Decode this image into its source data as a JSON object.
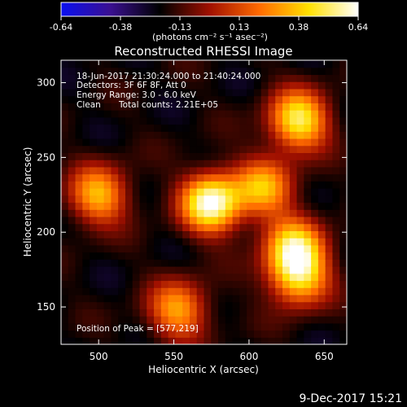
{
  "colorbar": {
    "ticks": [
      "-0.64",
      "-0.38",
      "-0.13",
      "0.13",
      "0.38",
      "0.64"
    ],
    "units": "(photons cm⁻² s⁻¹ asec⁻²)",
    "colors": [
      "#0a10f0",
      "#3a1090",
      "#000000",
      "#a01000",
      "#ff6a00",
      "#ffe000",
      "#ffffff"
    ]
  },
  "chart_data": {
    "type": "heatmap",
    "title": "Reconstructed RHESSI Image",
    "xlabel": "Heliocentric X (arcsec)",
    "ylabel": "Heliocentric Y (arcsec)",
    "xlim": [
      475,
      665
    ],
    "ylim": [
      125,
      315
    ],
    "xticks": [
      500,
      550,
      600,
      650
    ],
    "yticks": [
      150,
      200,
      250,
      300
    ],
    "value_range": [
      -0.64,
      0.64
    ],
    "annotations": [
      "18-Jun-2017 21:30:24.000 to 21:40:24.000",
      "Detectors: 3F 6F 8F, Att 0",
      "Energy Range: 3.0 - 6.0 keV",
      "Clean",
      "Total counts: 2.21E+05"
    ],
    "peak_label": "Position of Peak = [577,219]",
    "peak": [
      577,
      219
    ],
    "sources": [
      {
        "x": 575,
        "y": 220,
        "amplitude": 0.64
      },
      {
        "x": 633,
        "y": 275,
        "amplitude": 0.5
      },
      {
        "x": 630,
        "y": 190,
        "amplitude": 0.42
      },
      {
        "x": 633,
        "y": 170,
        "amplitude": 0.38
      },
      {
        "x": 610,
        "y": 230,
        "amplitude": 0.32
      },
      {
        "x": 500,
        "y": 225,
        "amplitude": 0.34
      },
      {
        "x": 553,
        "y": 148,
        "amplitude": 0.3
      }
    ]
  },
  "footer": {
    "date": "9-Dec-2017 15:21"
  }
}
